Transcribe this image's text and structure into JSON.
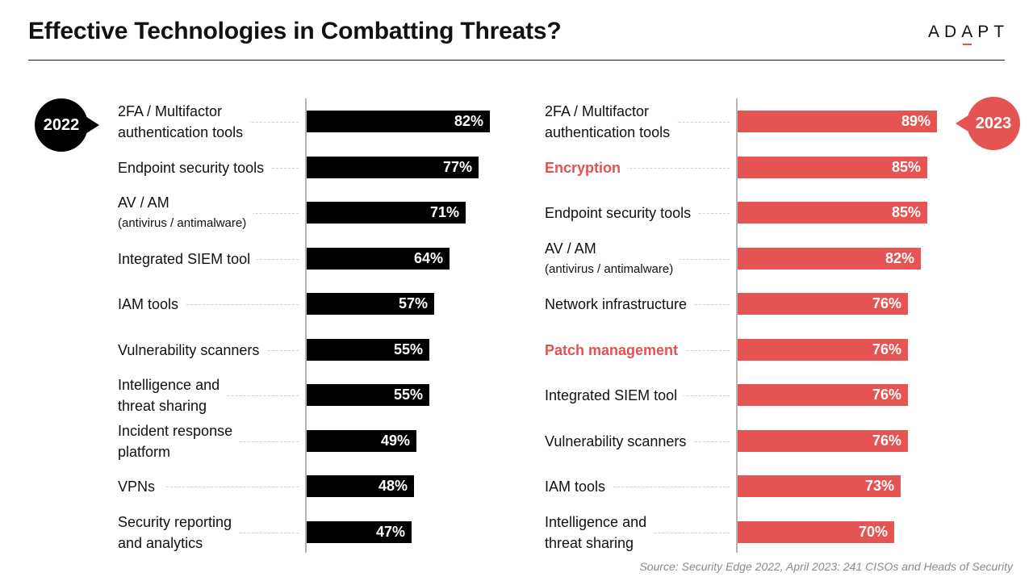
{
  "header": {
    "title": "Effective Technologies in Combatting Threats?",
    "logo": "ADAPT"
  },
  "source": "Source: Security Edge 2022, April 2023: 241 CISOs and Heads of Security",
  "colors": {
    "series_2022": "#000000",
    "series_2023": "#e55353",
    "highlight": "#e15252"
  },
  "chart_data": [
    {
      "type": "bar",
      "orientation": "horizontal",
      "badge": "2022",
      "xlim": [
        0,
        100
      ],
      "categories": [
        [
          "2FA / Multifactor",
          "authentication tools"
        ],
        [
          "Endpoint security tools"
        ],
        [
          "AV / AM",
          "(antivirus / antimalware)"
        ],
        [
          "Integrated SIEM tool"
        ],
        [
          "IAM tools"
        ],
        [
          "Vulnerability scanners"
        ],
        [
          "Intelligence and",
          "threat sharing"
        ],
        [
          "Incident response",
          "platform"
        ],
        [
          "VPNs"
        ],
        [
          "Security reporting",
          "and analytics"
        ]
      ],
      "values": [
        82,
        77,
        71,
        64,
        57,
        55,
        55,
        49,
        48,
        47
      ],
      "value_labels": [
        "82%",
        "77%",
        "71%",
        "64%",
        "57%",
        "55%",
        "55%",
        "49%",
        "48%",
        "47%"
      ],
      "highlighted": []
    },
    {
      "type": "bar",
      "orientation": "horizontal",
      "badge": "2023",
      "xlim": [
        0,
        100
      ],
      "categories": [
        [
          "2FA / Multifactor",
          "authentication tools"
        ],
        [
          "Encryption"
        ],
        [
          "Endpoint security tools"
        ],
        [
          "AV / AM",
          "(antivirus / antimalware)"
        ],
        [
          "Network infrastructure"
        ],
        [
          "Patch management"
        ],
        [
          "Integrated SIEM tool"
        ],
        [
          "Vulnerability scanners"
        ],
        [
          "IAM tools"
        ],
        [
          "Intelligence and",
          "threat sharing"
        ]
      ],
      "values": [
        89,
        85,
        85,
        82,
        76,
        76,
        76,
        76,
        73,
        70
      ],
      "value_labels": [
        "89%",
        "85%",
        "85%",
        "82%",
        "76%",
        "76%",
        "76%",
        "76%",
        "73%",
        "70%"
      ],
      "highlighted": [
        1,
        5
      ]
    }
  ]
}
